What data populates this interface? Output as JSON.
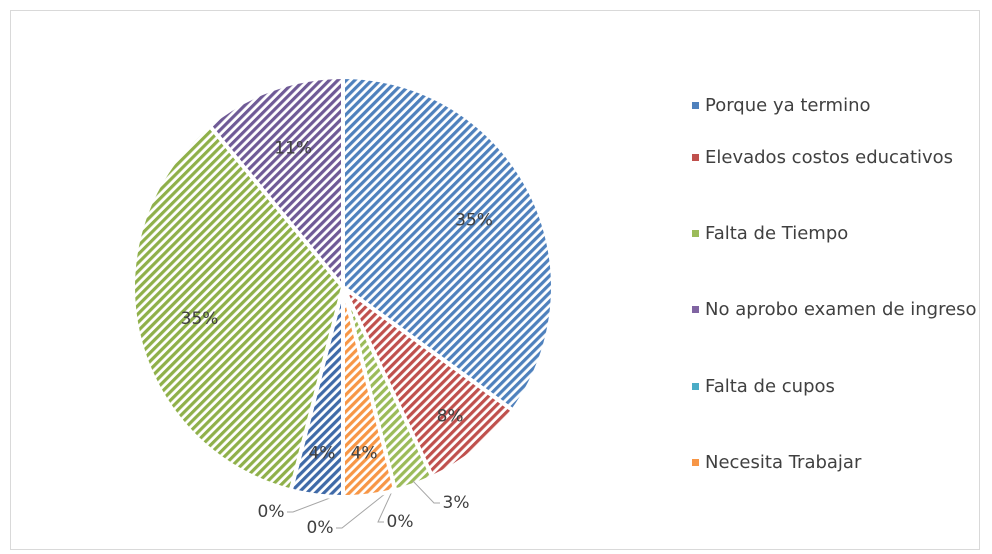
{
  "chart_data": {
    "type": "pie",
    "categories": [
      "Porque ya termino",
      "Elevados costos educativos",
      "Falta de Tiempo",
      "No aprobo examen de ingreso",
      "Falta de cupos",
      "Necesita Trabajar",
      null,
      null,
      null,
      null
    ],
    "values": [
      35,
      8,
      3,
      0,
      0,
      4,
      0,
      4,
      35,
      11
    ],
    "value_labels": [
      "35%",
      "8%",
      "3%",
      "0%",
      "0%",
      "4%",
      "0%",
      "4%",
      "35%",
      "11%"
    ],
    "colors": [
      "#4f81bd",
      "#c0504d",
      "#9bbb59",
      "#8064a2",
      "#4bacc6",
      "#f79646",
      "#2c4d75",
      "#3f6aa8",
      "#8fb04a",
      "#6f5a96"
    ],
    "legend": "right"
  }
}
